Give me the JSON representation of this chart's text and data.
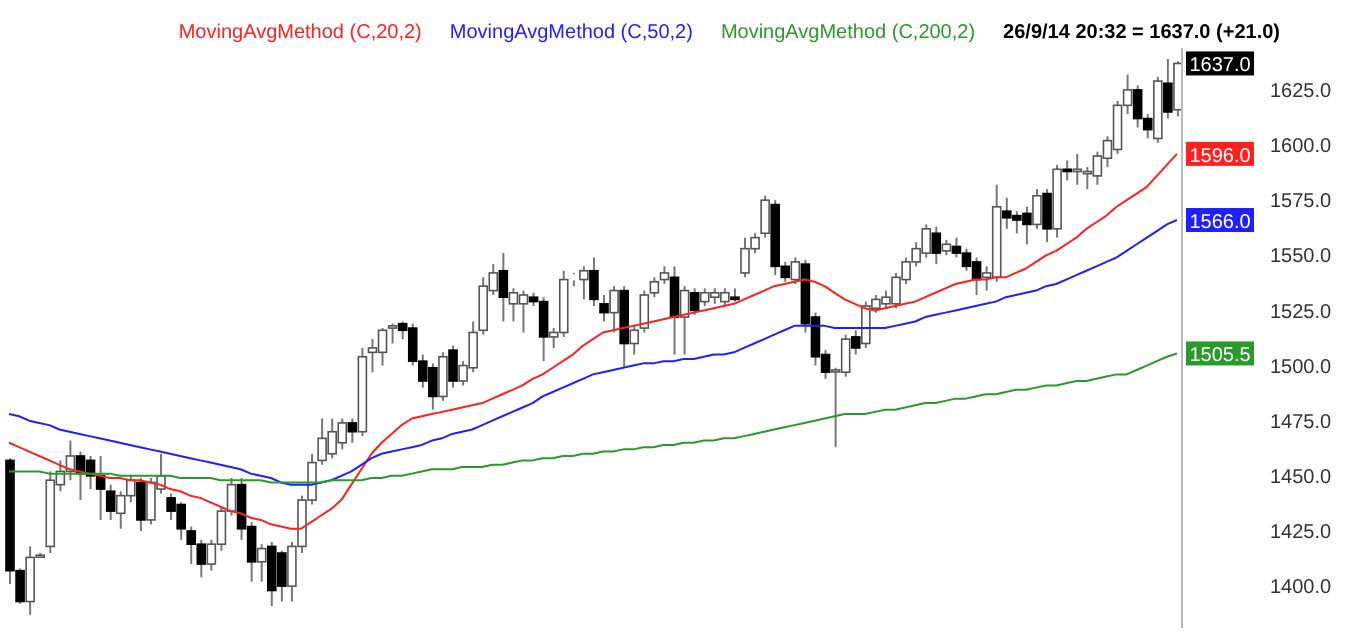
{
  "chart_data": {
    "type": "candlestick",
    "legend": "top",
    "annotations": [
      "26/9/14 20:32 = 1637.0 (+21.0)"
    ],
    "categories": [
      null,
      null,
      null,
      null,
      null,
      null,
      null,
      null,
      null,
      null,
      null,
      null,
      null,
      null,
      null,
      null,
      null,
      null,
      null,
      null,
      null,
      null,
      null,
      null,
      null,
      null,
      null,
      null,
      null,
      null,
      null,
      null,
      null,
      null,
      null,
      null,
      null,
      null,
      null,
      null,
      null,
      null,
      null,
      null,
      null,
      null,
      null,
      null,
      null,
      null,
      null,
      null,
      null,
      null,
      null,
      null,
      null,
      null,
      null,
      null,
      null,
      null,
      null,
      null,
      null,
      null,
      null,
      null,
      null,
      null,
      null,
      null,
      null,
      null,
      null,
      null,
      null,
      null,
      null,
      null,
      null,
      null,
      null,
      null,
      null,
      null,
      null,
      null,
      null,
      null,
      null,
      null,
      null,
      null,
      null,
      null,
      null,
      null,
      null,
      null,
      null,
      null,
      null,
      null,
      null,
      null,
      null,
      null,
      null,
      null,
      null,
      null,
      null,
      null,
      null,
      null,
      null
    ],
    "ylim": [
      1381,
      1644
    ],
    "yticks": [
      {
        "value": 1400,
        "label": "1400.0"
      },
      {
        "value": 1425,
        "label": "1425.0"
      },
      {
        "value": 1450,
        "label": "1450.0"
      },
      {
        "value": 1475,
        "label": "1475.0"
      },
      {
        "value": 1500,
        "label": "1500.0"
      },
      {
        "value": 1525,
        "label": "1525.0"
      },
      {
        "value": 1550,
        "label": "1550.0"
      },
      {
        "value": 1575,
        "label": "1575.0"
      },
      {
        "value": 1600,
        "label": "1600.0"
      },
      {
        "value": 1625,
        "label": "1625.0"
      }
    ],
    "series": [
      {
        "colors": [
          "#000000",
          "#000000",
          "#ffffff",
          "#ffffff",
          "#ffffff",
          "#ffffff",
          "#ffffff",
          "#000000",
          "#000000",
          "#000000",
          "#000000",
          "#ffffff",
          "#ffffff",
          "#000000",
          "#ffffff",
          "#ffffff",
          "#000000",
          "#000000",
          "#000000",
          "#000000",
          "#ffffff",
          "#ffffff",
          "#ffffff",
          "#000000",
          "#000000",
          "#ffffff",
          "#000000",
          "#000000",
          "#ffffff",
          "#ffffff",
          "#ffffff",
          "#ffffff",
          "#ffffff",
          "#ffffff",
          "#000000",
          "#ffffff",
          "#ffffff",
          "#ffffff",
          "#ffffff",
          "#000000",
          "#000000",
          "#000000",
          "#000000",
          "#ffffff",
          "#000000",
          "#ffffff",
          "#ffffff",
          "#ffffff",
          "#ffffff",
          "#000000",
          "#ffffff",
          "#ffffff",
          "#000000",
          "#000000",
          "#ffffff",
          "#ffffff",
          "#ffffff",
          "#ffffff",
          "#000000",
          "#000000",
          "#ffffff",
          "#000000",
          "#ffffff",
          "#ffffff",
          "#ffffff",
          "#ffffff",
          "#000000",
          "#ffffff",
          "#000000",
          "#ffffff",
          "#ffffff",
          "#ffffff",
          "#000000",
          "#ffffff",
          "#ffffff",
          "#ffffff",
          "#000000",
          "#000000",
          "#ffffff",
          "#000000",
          "#000000",
          "#000000",
          "#ffffff",
          "#ffffff",
          "#000000",
          "#ffffff",
          "#ffffff",
          "#ffffff",
          "#ffffff",
          "#ffffff",
          "#ffffff",
          "#ffffff",
          "#000000",
          "#ffffff",
          "#000000",
          "#000000",
          "#000000",
          "#ffffff",
          "#ffffff",
          "#000000",
          "#000000",
          "#000000",
          "#ffffff",
          "#000000",
          "#ffffff",
          "#000000",
          "#ffffff",
          "#ffffff",
          "#ffffff",
          "#ffffff",
          "#ffffff",
          "#ffffff",
          "#000000",
          "#000000",
          "#ffffff",
          "#000000",
          "#ffffff"
        ],
        "value_labels": [
          null,
          null,
          null,
          null,
          null,
          null,
          null,
          null,
          null,
          null,
          null,
          null,
          null,
          null,
          null,
          null,
          null,
          null,
          null,
          null,
          null,
          null,
          null,
          null,
          null,
          null,
          null,
          null,
          null,
          null,
          null,
          null,
          null,
          null,
          null,
          null,
          null,
          null,
          null,
          null,
          null,
          null,
          null,
          null,
          null,
          null,
          null,
          null,
          null,
          null,
          null,
          null,
          null,
          null,
          null,
          null,
          null,
          null,
          null,
          null,
          null,
          null,
          null,
          null,
          null,
          null,
          null,
          null,
          null,
          null,
          null,
          null,
          null,
          null,
          null,
          null,
          null,
          null,
          null,
          null,
          null,
          null,
          null,
          null,
          null,
          null,
          null,
          null,
          null,
          null,
          null,
          null,
          null,
          null,
          null,
          null,
          null,
          null,
          null,
          null,
          null,
          null,
          null,
          null,
          null,
          null,
          null,
          null,
          null,
          null,
          null,
          null,
          null,
          null,
          null,
          null,
          "1637.0"
        ],
        "ohlc": [
          [
            1457,
            1458,
            1401,
            1407
          ],
          [
            1407,
            1408,
            1392,
            1393
          ],
          [
            1393,
            1418,
            1387,
            1413
          ],
          [
            1414,
            1415,
            1413,
            1414
          ],
          [
            1418,
            1452,
            1415,
            1448
          ],
          [
            1446,
            1457,
            1443,
            1452
          ],
          [
            1452,
            1466,
            1448,
            1459
          ],
          [
            1459,
            1461,
            1439,
            1451
          ],
          [
            1457,
            1459,
            1444,
            1450
          ],
          [
            1450,
            1459,
            1430,
            1444
          ],
          [
            1443,
            1446,
            1430,
            1434
          ],
          [
            1433,
            1443,
            1426,
            1441
          ],
          [
            1441,
            1450,
            1438,
            1448
          ],
          [
            1447,
            1449,
            1425,
            1430
          ],
          [
            1430,
            1449,
            1428,
            1447
          ],
          [
            1444,
            1460,
            1442,
            1450
          ],
          [
            1440,
            1442,
            1430,
            1434
          ],
          [
            1437,
            1438,
            1421,
            1426
          ],
          [
            1425,
            1427,
            1410,
            1419
          ],
          [
            1419,
            1421,
            1404,
            1410
          ],
          [
            1410,
            1421,
            1407,
            1419
          ],
          [
            1419,
            1436,
            1416,
            1434
          ],
          [
            1434,
            1449,
            1432,
            1446
          ],
          [
            1446,
            1449,
            1421,
            1426
          ],
          [
            1427,
            1429,
            1402,
            1411
          ],
          [
            1411,
            1419,
            1402,
            1417
          ],
          [
            1418,
            1420,
            1391,
            1398
          ],
          [
            1415,
            1416,
            1393,
            1400
          ],
          [
            1400,
            1420,
            1393,
            1418
          ],
          [
            1418,
            1441,
            1415,
            1439
          ],
          [
            1439,
            1460,
            1437,
            1456
          ],
          [
            1457,
            1476,
            1455,
            1467
          ],
          [
            1460,
            1476,
            1458,
            1470
          ],
          [
            1465,
            1476,
            1462,
            1474
          ],
          [
            1474,
            1476,
            1465,
            1470
          ],
          [
            1470,
            1508,
            1468,
            1504
          ],
          [
            1506,
            1512,
            1497,
            1508
          ],
          [
            1506,
            1517,
            1500,
            1516
          ],
          [
            1517,
            1519,
            1510,
            1518
          ],
          [
            1519,
            1520,
            1512,
            1516
          ],
          [
            1517,
            1519,
            1500,
            1502
          ],
          [
            1502,
            1505,
            1490,
            1493
          ],
          [
            1499,
            1501,
            1480,
            1486
          ],
          [
            1486,
            1506,
            1484,
            1504
          ],
          [
            1507,
            1509,
            1490,
            1493
          ],
          [
            1493,
            1502,
            1491,
            1500
          ],
          [
            1499,
            1520,
            1497,
            1515
          ],
          [
            1516,
            1540,
            1514,
            1536
          ],
          [
            1534,
            1546,
            1532,
            1542
          ],
          [
            1543,
            1551,
            1520,
            1531
          ],
          [
            1528,
            1535,
            1520,
            1533
          ],
          [
            1528,
            1534,
            1515,
            1532
          ],
          [
            1531,
            1533,
            1527,
            1529
          ],
          [
            1529,
            1531,
            1502,
            1513
          ],
          [
            1513,
            1517,
            1508,
            1515
          ],
          [
            1515,
            1543,
            1513,
            1539
          ],
          [
            1541,
            1542,
            1536,
            1539
          ],
          [
            1539,
            1545,
            1530,
            1543
          ],
          [
            1543,
            1549,
            1527,
            1530
          ],
          [
            1528,
            1532,
            1520,
            1524
          ],
          [
            1524,
            1536,
            1515,
            1534
          ],
          [
            1534,
            1536,
            1499,
            1510
          ],
          [
            1510,
            1518,
            1505,
            1516
          ],
          [
            1517,
            1534,
            1515,
            1532
          ],
          [
            1533,
            1540,
            1531,
            1538
          ],
          [
            1539,
            1545,
            1537,
            1542
          ],
          [
            1540,
            1545,
            1505,
            1522
          ],
          [
            1522,
            1536,
            1505,
            1534
          ],
          [
            1533,
            1535,
            1523,
            1525
          ],
          [
            1529,
            1535,
            1527,
            1533
          ],
          [
            1531,
            1535,
            1528,
            1533
          ],
          [
            1529,
            1535,
            1527,
            1533
          ],
          [
            1531,
            1535,
            1529,
            1530
          ],
          [
            1542,
            1558,
            1540,
            1553
          ],
          [
            1553,
            1560,
            1551,
            1558
          ],
          [
            1560,
            1577,
            1558,
            1575
          ],
          [
            1573,
            1575,
            1541,
            1545
          ],
          [
            1545,
            1547,
            1538,
            1540
          ],
          [
            1539,
            1549,
            1537,
            1547
          ],
          [
            1546,
            1548,
            1515,
            1519
          ],
          [
            1522,
            1524,
            1500,
            1504
          ],
          [
            1505,
            1507,
            1494,
            1497
          ],
          [
            1498,
            1499,
            1463,
            1498
          ],
          [
            1497,
            1514,
            1495,
            1512
          ],
          [
            1513,
            1516,
            1505,
            1508
          ],
          [
            1510,
            1529,
            1508,
            1527
          ],
          [
            1526,
            1532,
            1524,
            1530
          ],
          [
            1528,
            1534,
            1526,
            1531
          ],
          [
            1528,
            1542,
            1526,
            1540
          ],
          [
            1539,
            1549,
            1537,
            1547
          ],
          [
            1547,
            1556,
            1545,
            1553
          ],
          [
            1551,
            1564,
            1549,
            1562
          ],
          [
            1560,
            1563,
            1546,
            1551
          ],
          [
            1552,
            1557,
            1550,
            1555
          ],
          [
            1554,
            1558,
            1549,
            1551
          ],
          [
            1551,
            1553,
            1543,
            1545
          ],
          [
            1547,
            1549,
            1532,
            1539
          ],
          [
            1540,
            1545,
            1534,
            1542
          ],
          [
            1540,
            1582,
            1538,
            1572
          ],
          [
            1570,
            1576,
            1562,
            1567
          ],
          [
            1568,
            1570,
            1560,
            1566
          ],
          [
            1569,
            1572,
            1555,
            1564
          ],
          [
            1564,
            1580,
            1562,
            1577
          ],
          [
            1578,
            1580,
            1556,
            1562
          ],
          [
            1562,
            1591,
            1558,
            1589
          ],
          [
            1589,
            1593,
            1584,
            1588
          ],
          [
            1588,
            1596,
            1582,
            1589
          ],
          [
            1587,
            1590,
            1580,
            1588
          ],
          [
            1586,
            1597,
            1582,
            1595
          ],
          [
            1594,
            1604,
            1590,
            1602
          ],
          [
            1598,
            1620,
            1596,
            1618
          ],
          [
            1618,
            1632,
            1614,
            1625
          ],
          [
            1625,
            1627,
            1608,
            1612
          ],
          [
            1612,
            1614,
            1603,
            1607
          ],
          [
            1603,
            1631,
            1601,
            1629
          ],
          [
            1628,
            1639,
            1612,
            1615
          ],
          [
            1616,
            1638,
            1613,
            1637
          ]
        ]
      },
      {
        "type": "line",
        "name": "MovingAvgMethod (C,20,2)",
        "color": "#ff2020",
        "value_labels": [
          null,
          null,
          null,
          null,
          null,
          null,
          null,
          null,
          null,
          null,
          null,
          null,
          null,
          null,
          null,
          null,
          null,
          null,
          null,
          null,
          null,
          null,
          null,
          null,
          null,
          null,
          null,
          null,
          null,
          null,
          null,
          null,
          null,
          null,
          null,
          null,
          null,
          null,
          null,
          null,
          null,
          null,
          null,
          null,
          null,
          null,
          null,
          null,
          null,
          null,
          null,
          null,
          null,
          null,
          null,
          null,
          null,
          null,
          null,
          null,
          null,
          null,
          null,
          null,
          null,
          null,
          null,
          null,
          null,
          null,
          null,
          null,
          null,
          null,
          null,
          null,
          null,
          null,
          null,
          null,
          null,
          null,
          null,
          null,
          null,
          null,
          null,
          null,
          null,
          null,
          null,
          null,
          null,
          null,
          null,
          null,
          null,
          null,
          null,
          null,
          null,
          null,
          null,
          null,
          null,
          null,
          null,
          null,
          null,
          null,
          null,
          null,
          null,
          null,
          null,
          null,
          "1596.0"
        ],
        "values": [
          1465,
          1463,
          1461,
          1459,
          1457,
          1455,
          1453,
          1452,
          1451,
          1450,
          1449,
          1449,
          1448,
          1448,
          1447,
          1446,
          1444,
          1443,
          1441,
          1440,
          1438,
          1436,
          1434,
          1433,
          1431,
          1430,
          1428,
          1427,
          1426,
          1426,
          1429,
          1432,
          1435,
          1439,
          1446,
          1453,
          1460,
          1465,
          1469,
          1473,
          1476,
          1477,
          1478,
          1479,
          1480,
          1481,
          1482,
          1483,
          1485,
          1487,
          1489,
          1491,
          1494,
          1496,
          1499,
          1502,
          1505,
          1509,
          1512,
          1515,
          1516,
          1517,
          1518,
          1519,
          1520,
          1521,
          1522,
          1523,
          1524,
          1525,
          1526,
          1527,
          1528,
          1530,
          1532,
          1534,
          1536,
          1537,
          1538,
          1539,
          1538,
          1536,
          1533,
          1530,
          1528,
          1526,
          1525,
          1526,
          1527,
          1528,
          1529,
          1531,
          1533,
          1535,
          1537,
          1538,
          1539,
          1539,
          1540,
          1540,
          1542,
          1544,
          1547,
          1550,
          1552,
          1555,
          1558,
          1562,
          1565,
          1568,
          1572,
          1575,
          1578,
          1581,
          1586,
          1591,
          1596
        ]
      },
      {
        "type": "line",
        "name": "MovingAvgMethod (C,50,2)",
        "color": "#2020ff",
        "value_labels": [
          null,
          null,
          null,
          null,
          null,
          null,
          null,
          null,
          null,
          null,
          null,
          null,
          null,
          null,
          null,
          null,
          null,
          null,
          null,
          null,
          null,
          null,
          null,
          null,
          null,
          null,
          null,
          null,
          null,
          null,
          null,
          null,
          null,
          null,
          null,
          null,
          null,
          null,
          null,
          null,
          null,
          null,
          null,
          null,
          null,
          null,
          null,
          null,
          null,
          null,
          null,
          null,
          null,
          null,
          null,
          null,
          null,
          null,
          null,
          null,
          null,
          null,
          null,
          null,
          null,
          null,
          null,
          null,
          null,
          null,
          null,
          null,
          null,
          null,
          null,
          null,
          null,
          null,
          null,
          null,
          null,
          null,
          null,
          null,
          null,
          null,
          null,
          null,
          null,
          null,
          null,
          null,
          null,
          null,
          null,
          null,
          null,
          null,
          null,
          null,
          null,
          null,
          null,
          null,
          null,
          null,
          null,
          null,
          null,
          null,
          null,
          null,
          null,
          null,
          null,
          null,
          "1566.0"
        ],
        "values": [
          1478,
          1477,
          1475,
          1474,
          1473,
          1471,
          1470,
          1469,
          1468,
          1467,
          1466,
          1465,
          1464,
          1463,
          1462,
          1461,
          1460,
          1459,
          1458,
          1457,
          1456,
          1455,
          1454,
          1453,
          1451,
          1450,
          1449,
          1447,
          1446,
          1446,
          1446,
          1447,
          1448,
          1450,
          1452,
          1455,
          1458,
          1460,
          1461,
          1462,
          1463,
          1464,
          1466,
          1467,
          1469,
          1470,
          1471,
          1473,
          1475,
          1477,
          1479,
          1481,
          1483,
          1486,
          1488,
          1490,
          1492,
          1494,
          1496,
          1497,
          1498,
          1499,
          1500,
          1501,
          1501,
          1502,
          1502,
          1503,
          1503,
          1504,
          1505,
          1505,
          1506,
          1508,
          1510,
          1512,
          1514,
          1516,
          1518,
          1518,
          1518,
          1518,
          1517,
          1517,
          1517,
          1517,
          1517,
          1517,
          1518,
          1519,
          1520,
          1522,
          1523,
          1524,
          1525,
          1526,
          1527,
          1528,
          1529,
          1531,
          1532,
          1533,
          1534,
          1536,
          1537,
          1539,
          1541,
          1543,
          1545,
          1547,
          1549,
          1552,
          1555,
          1558,
          1561,
          1564,
          1566
        ]
      },
      {
        "type": "line",
        "name": "MovingAvgMethod (C,200,2)",
        "color": "#2a9a2a",
        "value_labels": [
          null,
          null,
          null,
          null,
          null,
          null,
          null,
          null,
          null,
          null,
          null,
          null,
          null,
          null,
          null,
          null,
          null,
          null,
          null,
          null,
          null,
          null,
          null,
          null,
          null,
          null,
          null,
          null,
          null,
          null,
          null,
          null,
          null,
          null,
          null,
          null,
          null,
          null,
          null,
          null,
          null,
          null,
          null,
          null,
          null,
          null,
          null,
          null,
          null,
          null,
          null,
          null,
          null,
          null,
          null,
          null,
          null,
          null,
          null,
          null,
          null,
          null,
          null,
          null,
          null,
          null,
          null,
          null,
          null,
          null,
          null,
          null,
          null,
          null,
          null,
          null,
          null,
          null,
          null,
          null,
          null,
          null,
          null,
          null,
          null,
          null,
          null,
          null,
          null,
          null,
          null,
          null,
          null,
          null,
          null,
          null,
          null,
          null,
          null,
          null,
          null,
          null,
          null,
          null,
          null,
          null,
          null,
          null,
          null,
          null,
          null,
          null,
          null,
          null,
          null,
          null,
          "1505.5"
        ],
        "values": [
          1452,
          1452,
          1452,
          1452,
          1451,
          1451,
          1451,
          1451,
          1451,
          1451,
          1451,
          1450,
          1450,
          1450,
          1450,
          1450,
          1450,
          1449,
          1449,
          1449,
          1449,
          1448,
          1448,
          1448,
          1448,
          1448,
          1447,
          1447,
          1447,
          1447,
          1447,
          1447,
          1448,
          1448,
          1448,
          1448,
          1449,
          1449,
          1450,
          1450,
          1451,
          1452,
          1453,
          1453,
          1453,
          1454,
          1454,
          1454,
          1455,
          1455,
          1456,
          1457,
          1457,
          1458,
          1458,
          1459,
          1459,
          1460,
          1460,
          1461,
          1461,
          1462,
          1462,
          1463,
          1463,
          1464,
          1464,
          1465,
          1465,
          1466,
          1466,
          1467,
          1467,
          1468,
          1469,
          1470,
          1471,
          1472,
          1473,
          1474,
          1475,
          1476,
          1477,
          1478,
          1478,
          1478,
          1479,
          1480,
          1480,
          1481,
          1482,
          1483,
          1483,
          1484,
          1485,
          1485,
          1486,
          1487,
          1487,
          1488,
          1489,
          1489,
          1490,
          1491,
          1491,
          1492,
          1493,
          1493,
          1494,
          1495,
          1496,
          1496,
          1498,
          1500,
          1502,
          1504,
          1505.5
        ]
      }
    ]
  }
}
